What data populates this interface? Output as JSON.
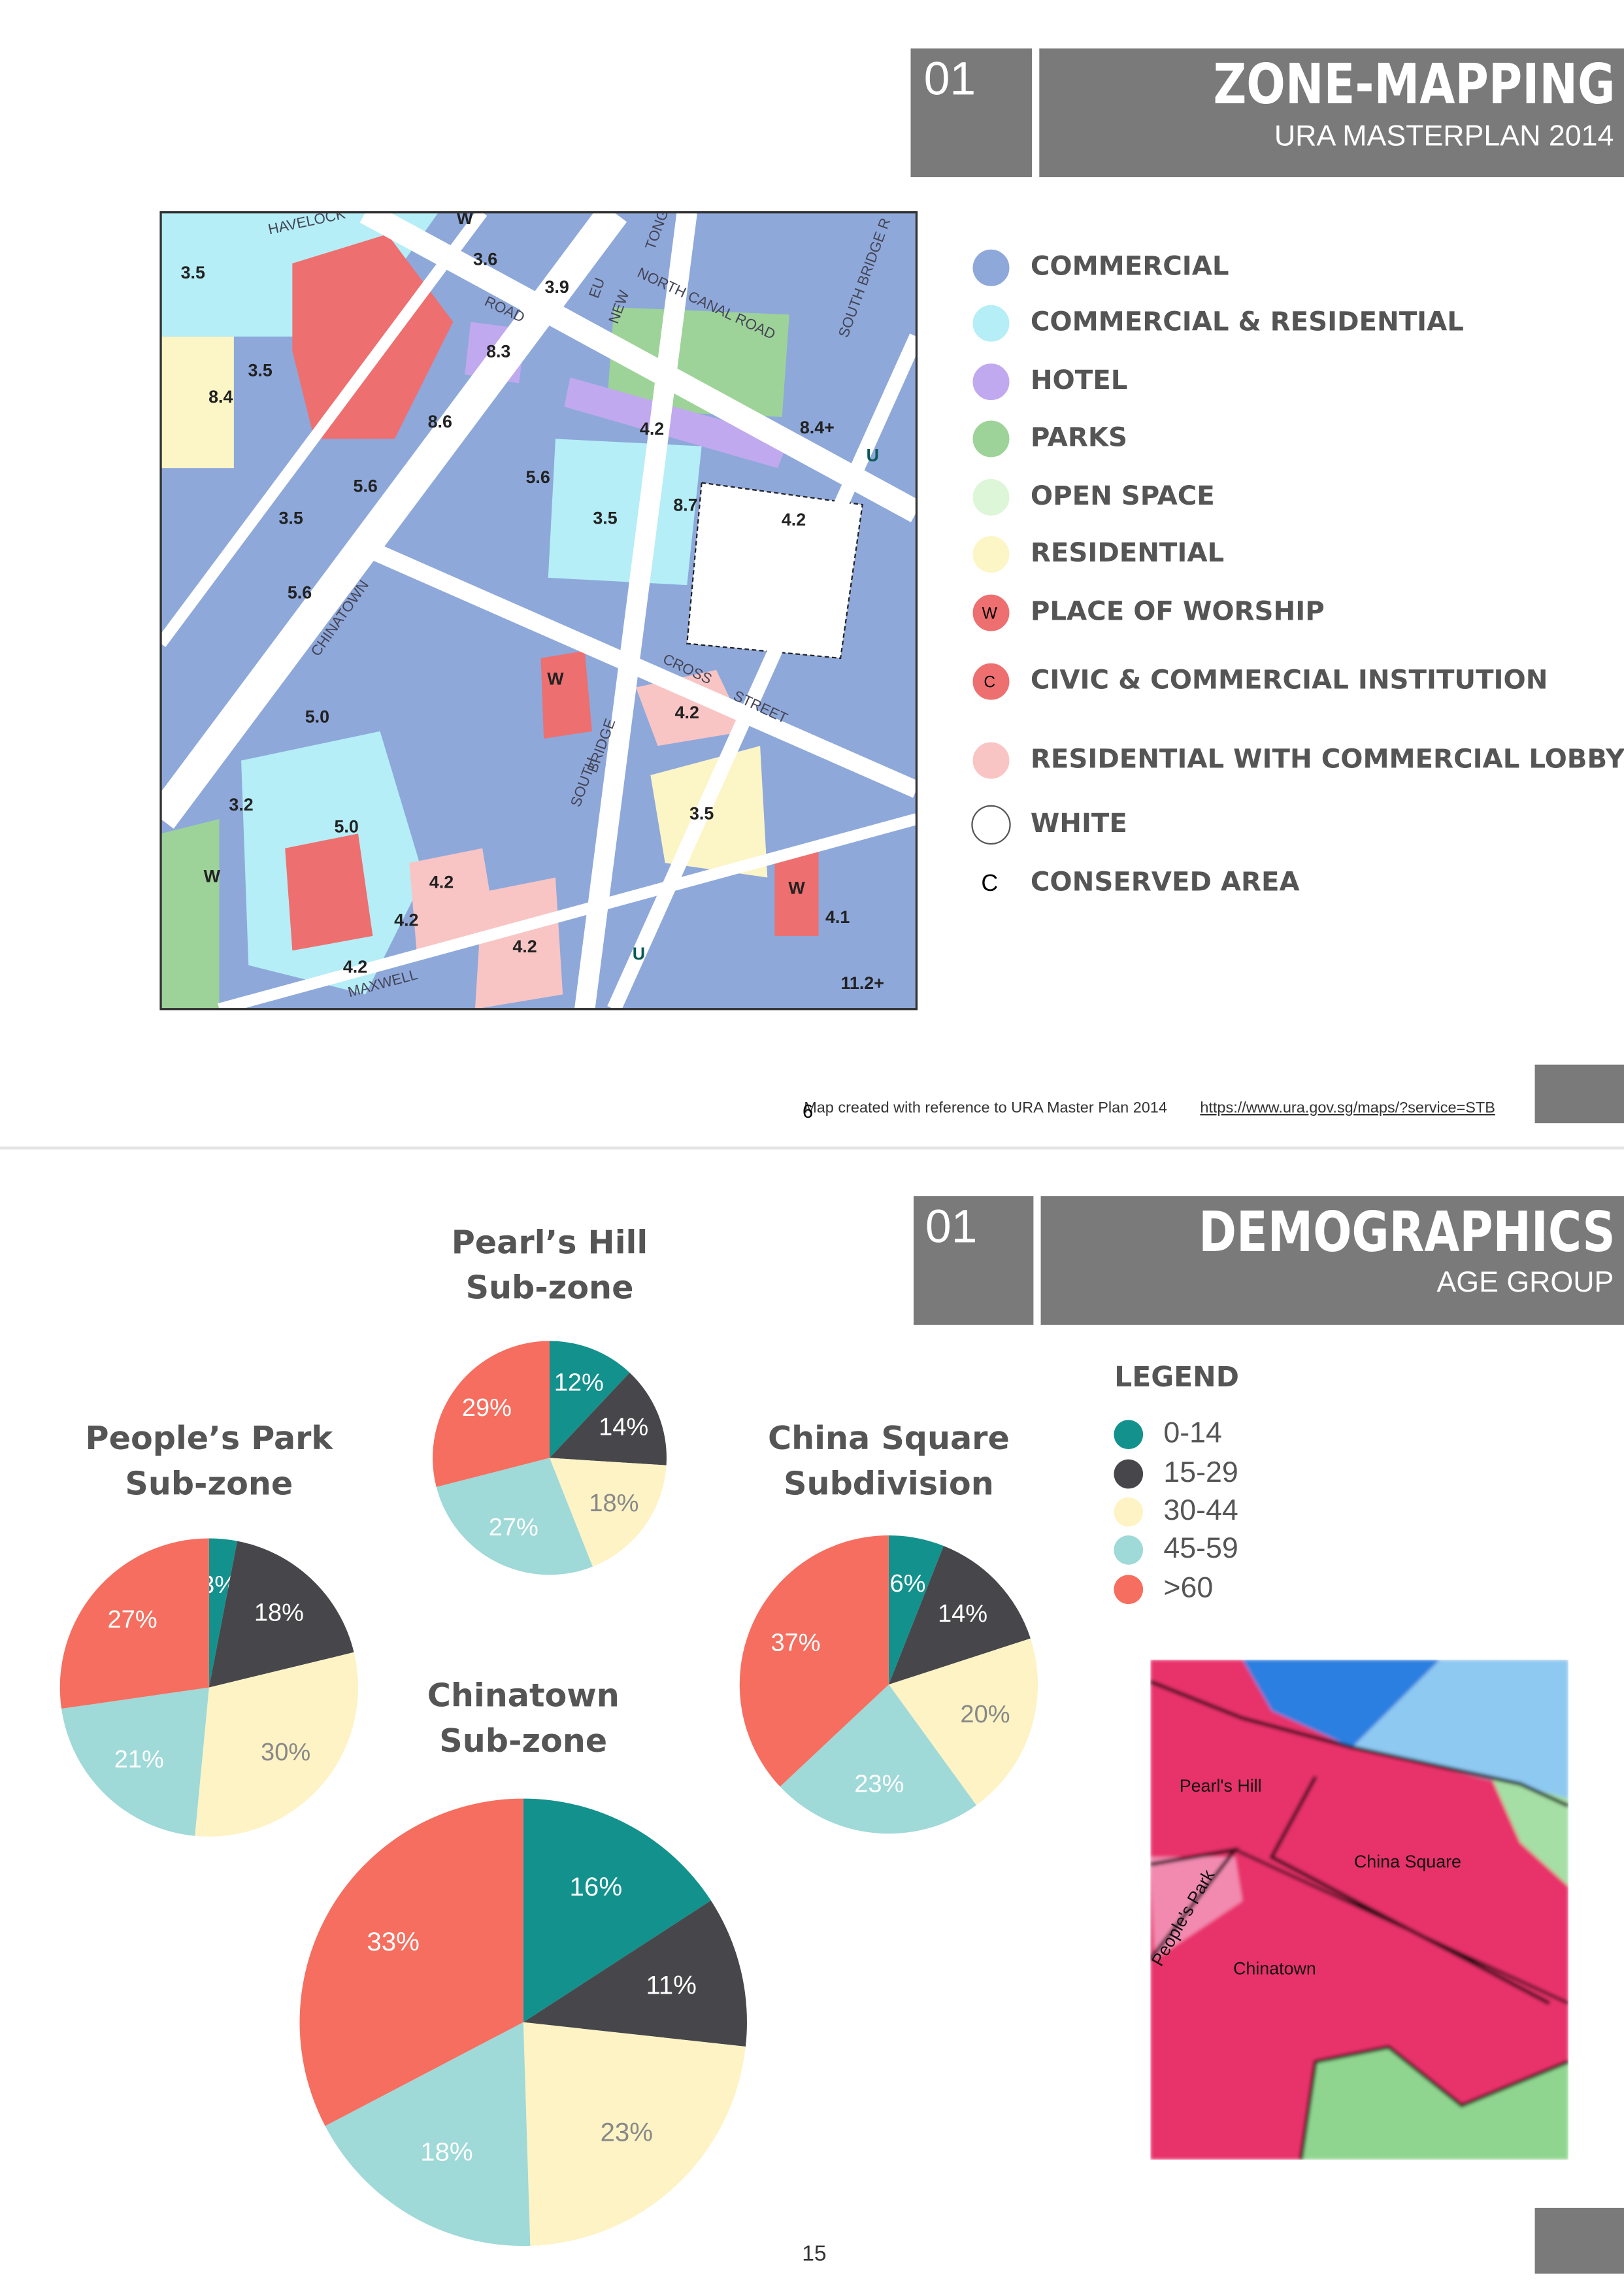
{
  "slides": [
    {
      "number": "01",
      "title": "ZONE-MAPPING",
      "subtitle": "URA MASTERPLAN 2014",
      "map_labels": [
        "HAVELOCK",
        "ROAD",
        "EU",
        "NEW",
        "TONG",
        "NORTH CANAL ROAD",
        "SOUTH BRIDGE R",
        "CROSS",
        "STREET",
        "CHINATOWN",
        "SOUTH",
        "BRIDGE",
        "MAXWELL",
        "3.5",
        "3.6",
        "3.9",
        "8.3",
        "8.4",
        "3.5",
        "8.6",
        "4.2",
        "8.4+",
        "5.6",
        "5.6",
        "3.5",
        "3.5",
        "8.7",
        "4.2",
        "5.6",
        "4.2",
        "5.0",
        "3.2",
        "5.0",
        "3.5",
        "4.2",
        "4.2",
        "4.2",
        "4.2",
        "4.1",
        "11.2+",
        "W",
        "W",
        "W",
        "W",
        "U",
        "U"
      ],
      "legend": [
        {
          "label": "COMMERCIAL",
          "color": "#8ea8da"
        },
        {
          "label": "COMMERCIAL & RESIDENTIAL",
          "color": "#b5eef6"
        },
        {
          "label": "HOTEL",
          "color": "#c0a9ef"
        },
        {
          "label": "PARKS",
          "color": "#9dd398"
        },
        {
          "label": "OPEN SPACE",
          "color": "#ddf6d8"
        },
        {
          "label": "RESIDENTIAL",
          "color": "#fcf5c6"
        },
        {
          "label": "PLACE OF WORSHIP",
          "color": "#ee6f6f",
          "symbol": "W"
        },
        {
          "label": "CIVIC & COMMERCIAL INSTITUTION",
          "color": "#ee6f6f",
          "symbol": "C"
        },
        {
          "label": "RESIDENTIAL WITH COMMERCIAL LOBBY",
          "color": "#f8c5c4"
        },
        {
          "label": "WHITE",
          "color": "#ffffff"
        },
        {
          "label": "CONSERVED AREA",
          "symbol": "C"
        }
      ],
      "footer": "Map created with reference to URA Master Plan 2014",
      "footer_link": "https://www.ura.gov.sg/maps/?service=STB",
      "page": "6"
    },
    {
      "number": "01",
      "title": "DEMOGRAPHICS",
      "subtitle": "AGE GROUP",
      "legend_title": "LEGEND",
      "map_labels": [
        "Pearl's Hill",
        "China Square",
        "People's Park",
        "Chinatown"
      ],
      "page": "15"
    }
  ],
  "chart_data": [
    {
      "type": "pie",
      "title": [
        "Pearl’s Hill",
        "Sub-zone"
      ],
      "categories": [
        "0-14",
        "15-29",
        "30-44",
        "45-59",
        ">60"
      ],
      "colors": [
        "#13918d",
        "#47474b",
        "#fdf3c5",
        "#9fd9d8",
        "#f56e5f"
      ],
      "values": [
        12,
        14,
        18,
        27,
        29
      ],
      "value_labels": [
        "12%",
        "14%",
        "18%",
        "27%",
        "29%"
      ]
    },
    {
      "type": "pie",
      "title": [
        "People’s Park",
        "Sub-zone"
      ],
      "categories": [
        "0-14",
        "15-29",
        "30-44",
        "45-59",
        ">60"
      ],
      "colors": [
        "#13918d",
        "#47474b",
        "#fdf3c5",
        "#9fd9d8",
        "#f56e5f"
      ],
      "values": [
        3,
        18,
        30,
        21,
        27
      ],
      "value_labels": [
        "3%",
        "18%",
        "30%",
        "21%",
        "27%"
      ]
    },
    {
      "type": "pie",
      "title": [
        "China Square",
        "Subdivision"
      ],
      "categories": [
        "0-14",
        "15-29",
        "30-44",
        "45-59",
        ">60"
      ],
      "colors": [
        "#13918d",
        "#47474b",
        "#fdf3c5",
        "#9fd9d8",
        "#f56e5f"
      ],
      "values": [
        6,
        14,
        20,
        23,
        37
      ],
      "value_labels": [
        "6%",
        "14%",
        "20%",
        "23%",
        "37%"
      ]
    },
    {
      "type": "pie",
      "title": [
        "Chinatown",
        "Sub-zone"
      ],
      "categories": [
        "0-14",
        "15-29",
        "30-44",
        "45-59",
        ">60"
      ],
      "colors": [
        "#13918d",
        "#47474b",
        "#fdf3c5",
        "#9fd9d8",
        "#f56e5f"
      ],
      "values": [
        16,
        11,
        23,
        18,
        33
      ],
      "value_labels": [
        "16%",
        "11%",
        "23%",
        "18%",
        "33%"
      ]
    }
  ]
}
